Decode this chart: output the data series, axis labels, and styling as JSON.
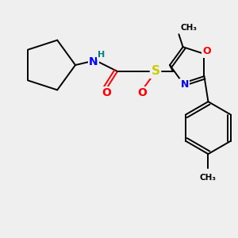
{
  "background_color": "#efefef",
  "figsize": [
    3.0,
    3.0
  ],
  "dpi": 100,
  "atom_colors": {
    "N": "#0000ff",
    "O": "#ff0000",
    "S": "#cccc00",
    "H": "#008080",
    "C": "#000000"
  },
  "bond_color": "#000000",
  "bond_lw": 1.4
}
